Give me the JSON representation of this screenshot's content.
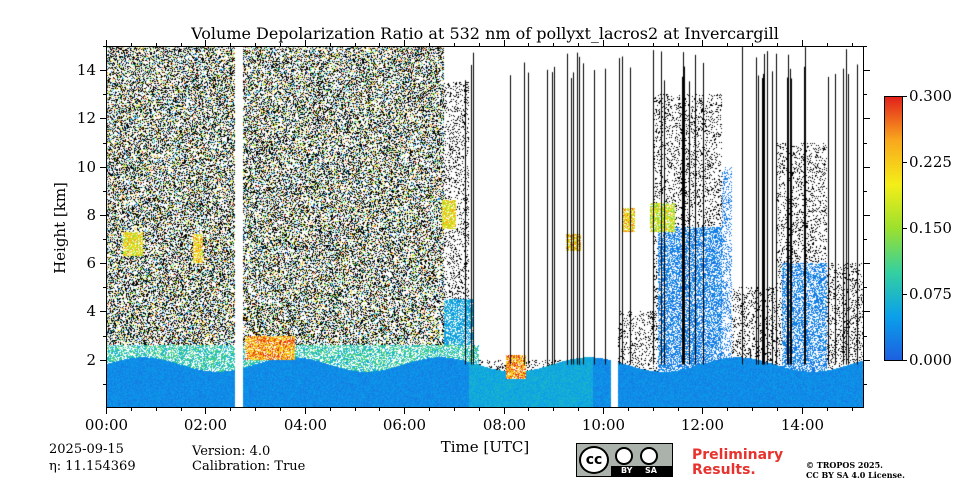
{
  "chart_data": {
    "type": "heatmap",
    "title": "Volume Depolarization Ratio at 532 nm of pollyxt_lacros2 at Invercargill",
    "xlabel": "Time [UTC]",
    "ylabel": "Height [km]",
    "xlim_hours": [
      0,
      15.25
    ],
    "ylim_km": [
      0,
      15
    ],
    "x_ticks": [
      {
        "value": 0,
        "label": "00:00"
      },
      {
        "value": 2,
        "label": "02:00"
      },
      {
        "value": 4,
        "label": "04:00"
      },
      {
        "value": 6,
        "label": "06:00"
      },
      {
        "value": 8,
        "label": "08:00"
      },
      {
        "value": 10,
        "label": "10:00"
      },
      {
        "value": 12,
        "label": "12:00"
      },
      {
        "value": 14,
        "label": "14:00"
      }
    ],
    "y_ticks": [
      {
        "value": 2,
        "label": "2"
      },
      {
        "value": 4,
        "label": "4"
      },
      {
        "value": 6,
        "label": "6"
      },
      {
        "value": 8,
        "label": "8"
      },
      {
        "value": 10,
        "label": "10"
      },
      {
        "value": 12,
        "label": "12"
      },
      {
        "value": 14,
        "label": "14"
      }
    ],
    "colorbar": {
      "min": 0.0,
      "max": 0.3,
      "ticks": [
        {
          "value": 0.0,
          "label": "0.000"
        },
        {
          "value": 0.075,
          "label": "0.075"
        },
        {
          "value": 0.15,
          "label": "0.150"
        },
        {
          "value": 0.225,
          "label": "0.225"
        },
        {
          "value": 0.3,
          "label": "0.300"
        }
      ],
      "colors": [
        "#1d5fe0",
        "#0aa0ea",
        "#34d0a0",
        "#9be02e",
        "#f4ee18",
        "#f9a81d",
        "#e2201c"
      ]
    },
    "data_gaps_hours": [
      [
        2.6,
        2.75
      ],
      [
        10.15,
        10.3
      ]
    ],
    "features": [
      {
        "kind": "boundary_layer",
        "start_h": 0,
        "end_h": 15.25,
        "top_km": 1.8,
        "ratio": 0.04
      },
      {
        "kind": "cloud_layer",
        "start_h": 2.8,
        "end_h": 3.8,
        "bottom_km": 2.0,
        "top_km": 3.0,
        "ratio": 0.25
      },
      {
        "kind": "cloud_layer",
        "start_h": 0.35,
        "end_h": 0.75,
        "bottom_km": 6.3,
        "top_km": 7.3,
        "ratio": 0.2
      },
      {
        "kind": "cloud_layer",
        "start_h": 1.75,
        "end_h": 1.95,
        "bottom_km": 6.0,
        "top_km": 7.2,
        "ratio": 0.22
      },
      {
        "kind": "cloud_layer",
        "start_h": 6.75,
        "end_h": 7.05,
        "bottom_km": 7.4,
        "top_km": 8.6,
        "ratio": 0.2
      },
      {
        "kind": "cloud_layer",
        "start_h": 8.05,
        "end_h": 8.45,
        "bottom_km": 1.2,
        "top_km": 2.2,
        "ratio": 0.25
      },
      {
        "kind": "cloud_layer",
        "start_h": 9.25,
        "end_h": 9.55,
        "bottom_km": 6.5,
        "top_km": 7.2,
        "ratio": 0.22
      },
      {
        "kind": "cloud_layer",
        "start_h": 10.4,
        "end_h": 10.65,
        "bottom_km": 7.3,
        "top_km": 8.3,
        "ratio": 0.22
      },
      {
        "kind": "cloud_layer",
        "start_h": 10.95,
        "end_h": 11.45,
        "bottom_km": 7.3,
        "top_km": 8.5,
        "ratio": 0.18
      }
    ]
  },
  "footer": {
    "date": "2025-09-15",
    "eta": "η: 11.154369",
    "version": "Version: 4.0",
    "calibration": "Calibration: True",
    "cc_by": "BY",
    "cc_sa": "SA",
    "cc_text": "cc",
    "preliminary_line1": "Preliminary",
    "preliminary_line2": "Results.",
    "copyright_line1": "© TROPOS 2025.",
    "copyright_line2": "CC BY SA 4.0 License."
  }
}
